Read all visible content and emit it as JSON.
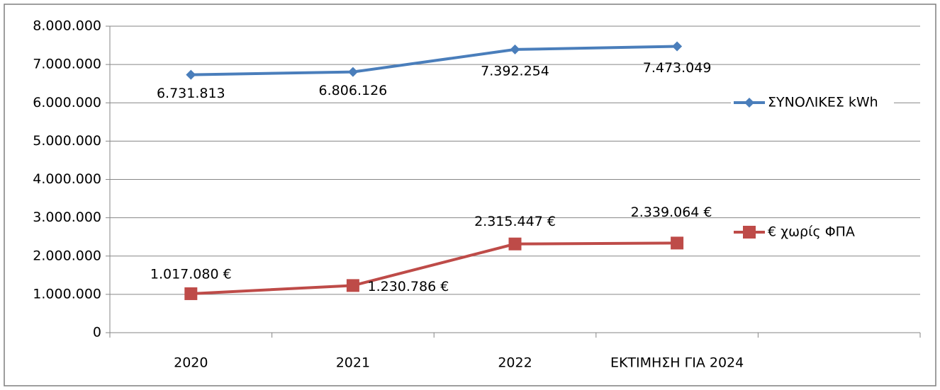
{
  "chart_data": {
    "type": "line",
    "categories": [
      "2020",
      "2021",
      "2022",
      "ΕΚΤΙΜΗΣΗ ΓΙΑ 2024",
      null
    ],
    "series": [
      {
        "name": "ΣΥΝΟΛΙΚΕΣ kWh",
        "color": "#4a7ebb",
        "marker": "diamond",
        "values": [
          6731813,
          6806126,
          7392254,
          7473049,
          null
        ],
        "value_labels": [
          "6.731.813",
          "6.806.126",
          "7.392.254",
          "7.473.049",
          null
        ]
      },
      {
        "name": "€ χωρίς ΦΠΑ",
        "color": "#be4b48",
        "marker": "square",
        "values": [
          1017080,
          1230786,
          2315447,
          2339064,
          null
        ],
        "value_labels": [
          "1.017.080 €",
          "1.230.786 €",
          "2.315.447 €",
          "2.339.064 €",
          null
        ]
      }
    ],
    "ylim": [
      0,
      8000000
    ],
    "yticks": [
      0,
      {
        "value": 1000000,
        "label": "1.000.000"
      },
      {
        "value": 2000000,
        "label": "2.000.000"
      },
      {
        "value": 3000000,
        "label": "3.000.000"
      },
      {
        "value": 4000000,
        "label": "4.000.000"
      },
      {
        "value": 5000000,
        "label": "5.000.000"
      },
      {
        "value": 6000000,
        "label": "6.000.000"
      },
      {
        "value": 7000000,
        "label": "7.000.000"
      },
      {
        "value": 8000000,
        "label": "8.000.000"
      }
    ],
    "grid": true,
    "legend": "right"
  }
}
